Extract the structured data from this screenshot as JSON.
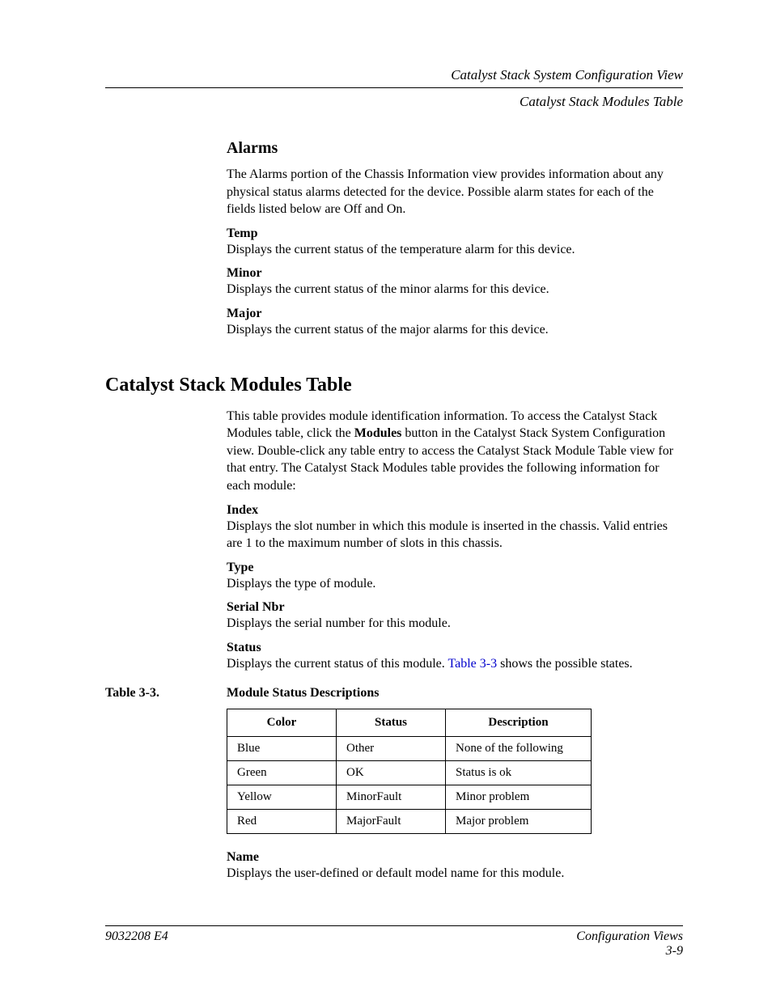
{
  "header": {
    "line1": "Catalyst Stack System Configuration View",
    "line2": "Catalyst Stack Modules Table"
  },
  "alarms": {
    "heading": "Alarms",
    "intro": "The Alarms portion of the Chassis Information view provides information about any physical status alarms detected for the device. Possible alarm states for each of the fields listed below are Off and On.",
    "fields": {
      "temp": {
        "label": "Temp",
        "desc": "Displays the current status of the temperature alarm for this device."
      },
      "minor": {
        "label": "Minor",
        "desc": "Displays the current status of the minor alarms for this device."
      },
      "major": {
        "label": "Major",
        "desc": "Displays the current status of the major alarms for this device."
      }
    }
  },
  "modules": {
    "heading": "Catalyst Stack Modules Table",
    "intro_pre": "This table provides module identification information. To access the Catalyst Stack Modules table, click the ",
    "intro_bold": "Modules",
    "intro_post": " button in the Catalyst Stack System Configuration view. Double-click any table entry to access the Catalyst Stack Module Table view for that entry. The Catalyst Stack Modules table provides the following information for each module:",
    "fields": {
      "index": {
        "label": "Index",
        "desc": "Displays the slot number in which this module is inserted in the chassis. Valid entries are 1 to the maximum number of slots in this chassis."
      },
      "type": {
        "label": "Type",
        "desc": "Displays the type of module."
      },
      "serial": {
        "label": "Serial Nbr",
        "desc": "Displays the serial number for this module."
      },
      "status": {
        "label": "Status",
        "desc_pre": "Displays the current status of this module. ",
        "desc_link": "Table 3-3",
        "desc_post": " shows the possible states."
      },
      "name": {
        "label": "Name",
        "desc": "Displays the user-defined or default model name for this module."
      }
    },
    "table": {
      "number": "Table 3-3.",
      "title": "Module Status Descriptions",
      "columns": [
        "Color",
        "Status",
        "Description"
      ],
      "rows": [
        [
          "Blue",
          "Other",
          "None of the following"
        ],
        [
          "Green",
          "OK",
          "Status is ok"
        ],
        [
          "Yellow",
          "MinorFault",
          "Minor problem"
        ],
        [
          "Red",
          "MajorFault",
          "Major problem"
        ]
      ]
    }
  },
  "footer": {
    "left": "9032208 E4",
    "right_title": "Configuration Views",
    "right_page": "3-9"
  }
}
